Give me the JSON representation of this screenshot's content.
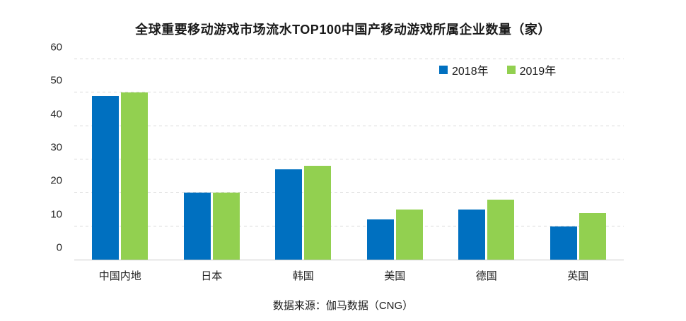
{
  "page": {
    "footer": "数据来源：伽马数据（CNG）"
  },
  "colors": {
    "series_2018": "#0070C0",
    "series_2019": "#92D050",
    "gridline": "#D9D9D9",
    "axis_line": "#C9C9C9",
    "text": "#262626",
    "background": "#FFFFFF"
  },
  "chart_data": {
    "type": "bar",
    "title": "全球重要移动游戏市场流水TOP100中国产移动游戏所属企业数量（家）",
    "categories": [
      "中国内地",
      "日本",
      "韩国",
      "美国",
      "德国",
      "英国"
    ],
    "series": [
      {
        "name": "2018年",
        "color": "#0070C0",
        "values": [
          49,
          20,
          27,
          12,
          15,
          10
        ]
      },
      {
        "name": "2019年",
        "color": "#92D050",
        "values": [
          50,
          20,
          28,
          15,
          18,
          14
        ]
      }
    ],
    "xlabel": "",
    "ylabel": "",
    "ylim": [
      0,
      60
    ],
    "ytick_step": 10,
    "yticks": [
      0,
      10,
      20,
      30,
      40,
      50,
      60
    ],
    "grid": "dashed-horizontal",
    "legend_position": "top-right",
    "source_note": "数据来源：伽马数据（CNG）"
  }
}
